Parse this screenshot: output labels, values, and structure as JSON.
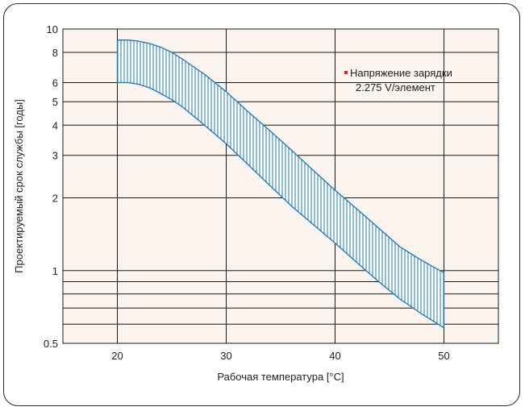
{
  "chart_data": {
    "type": "area",
    "title": "",
    "xlabel": "Рабочая температура [°C]",
    "ylabel": "Проектируемый срок службы [годы]",
    "xlim": [
      15,
      55
    ],
    "ylim": [
      0.5,
      10
    ],
    "yscale": "log",
    "grid": true,
    "legend_position": "top-right",
    "x_ticks": [
      20,
      30,
      40,
      50
    ],
    "y_ticks": [
      {
        "value": 0.5,
        "label": "0.5"
      },
      {
        "value": 0.6,
        "label": ""
      },
      {
        "value": 0.7,
        "label": ""
      },
      {
        "value": 0.8,
        "label": ""
      },
      {
        "value": 0.9,
        "label": ""
      },
      {
        "value": 1,
        "label": "1"
      },
      {
        "value": 2,
        "label": "2"
      },
      {
        "value": 3,
        "label": "3"
      },
      {
        "value": 4,
        "label": "4"
      },
      {
        "value": 5,
        "label": "5"
      },
      {
        "value": 6,
        "label": "6"
      },
      {
        "value": 8,
        "label": "8"
      },
      {
        "value": 10,
        "label": "10"
      }
    ],
    "band": {
      "upper": {
        "x": [
          20,
          21,
          22,
          23,
          24,
          25,
          26,
          28,
          30,
          32,
          34,
          36,
          38,
          40,
          42,
          44,
          46,
          48,
          50
        ],
        "y": [
          9.0,
          9.0,
          8.9,
          8.7,
          8.4,
          8.0,
          7.5,
          6.5,
          5.5,
          4.55,
          3.8,
          3.15,
          2.6,
          2.15,
          1.8,
          1.5,
          1.25,
          1.1,
          0.98
        ]
      },
      "lower": {
        "x": [
          20,
          21,
          22,
          23,
          24,
          25,
          26,
          28,
          30,
          32,
          34,
          36,
          38,
          40,
          42,
          44,
          46,
          48,
          50
        ],
        "y": [
          6.0,
          6.0,
          5.9,
          5.7,
          5.4,
          5.1,
          4.75,
          4.0,
          3.35,
          2.75,
          2.25,
          1.85,
          1.55,
          1.3,
          1.08,
          0.9,
          0.76,
          0.66,
          0.58
        ]
      }
    },
    "legend": {
      "line1": "Напряжение зарядки",
      "line2": "2.275 V/элемент"
    },
    "colors": {
      "plot_bg": "#faf3ee",
      "grid": "#1a1a1a",
      "band_stroke": "#1e78b4",
      "hatch": "#1e78b4",
      "legend_marker": "#d8281e"
    }
  }
}
